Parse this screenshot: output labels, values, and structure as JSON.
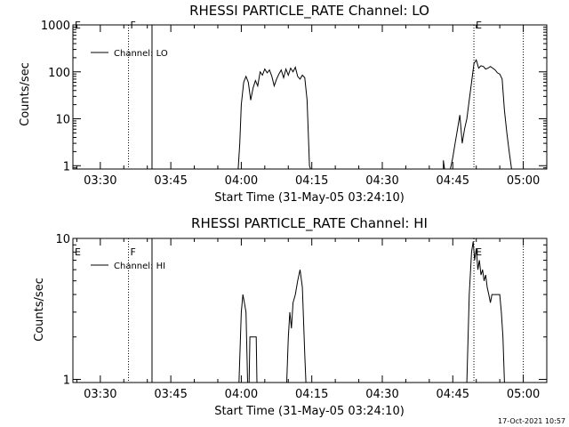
{
  "footer": {
    "timestamp": "17-Oct-2021 10:57"
  },
  "chart_data": [
    {
      "type": "line",
      "title": "RHESSI PARTICLE_RATE Channel: LO",
      "xlabel": "Start Time (31-May-05 03:24:10)",
      "ylabel": "Counts/sec",
      "yscale": "log",
      "xlim": [
        "03:24:10",
        "05:05:00"
      ],
      "ylim": [
        0.85,
        1000
      ],
      "x_ticks": [
        "03:30",
        "03:45",
        "04:00",
        "04:15",
        "04:30",
        "04:45",
        "05:00"
      ],
      "y_ticks": [
        "1",
        "10",
        "100",
        "1000"
      ],
      "legend": {
        "label": "Channel: LO",
        "position": "top-left"
      },
      "markers": [
        {
          "label": "E",
          "time": "03:24:10",
          "style": "solid"
        },
        {
          "label": "F",
          "time": "03:36:00",
          "style": "dotted"
        },
        {
          "label": "",
          "time": "03:41:00",
          "style": "solid"
        },
        {
          "label": "E",
          "time": "04:49:30",
          "style": "dotted"
        },
        {
          "label": "",
          "time": "05:00:00",
          "style": "dotted"
        }
      ],
      "series": [
        {
          "name": "Channel: LO",
          "segments": [
            [
              [
                "03:24:10",
                0.85
              ],
              [
                "03:59:20",
                0.85
              ],
              [
                "03:59:40",
                3
              ],
              [
                "04:00:00",
                20
              ],
              [
                "04:00:30",
                60
              ],
              [
                "04:01:00",
                80
              ],
              [
                "04:01:30",
                60
              ],
              [
                "04:02:00",
                25
              ],
              [
                "04:02:30",
                45
              ],
              [
                "04:03:00",
                65
              ],
              [
                "04:03:30",
                50
              ],
              [
                "04:04:00",
                100
              ],
              [
                "04:04:30",
                85
              ],
              [
                "04:05:00",
                115
              ],
              [
                "04:05:30",
                95
              ],
              [
                "04:06:00",
                110
              ],
              [
                "04:06:30",
                80
              ],
              [
                "04:07:00",
                50
              ],
              [
                "04:07:30",
                70
              ],
              [
                "04:08:00",
                90
              ],
              [
                "04:08:30",
                110
              ],
              [
                "04:09:00",
                75
              ],
              [
                "04:09:30",
                115
              ],
              [
                "04:10:00",
                85
              ],
              [
                "04:10:30",
                120
              ],
              [
                "04:11:00",
                100
              ],
              [
                "04:11:30",
                125
              ],
              [
                "04:12:00",
                80
              ],
              [
                "04:12:30",
                70
              ],
              [
                "04:13:00",
                85
              ],
              [
                "04:13:30",
                75
              ],
              [
                "04:14:00",
                25
              ],
              [
                "04:14:30",
                1
              ],
              [
                "04:14:45",
                0.85
              ],
              [
                "04:43:00",
                0.85
              ]
            ],
            [
              [
                "04:43:00",
                0.85
              ],
              [
                "04:43:00",
                1.3
              ],
              [
                "04:43:15",
                0.85
              ]
            ],
            [
              [
                "04:44:30",
                0.85
              ],
              [
                "04:45:00",
                1.5
              ],
              [
                "04:45:30",
                3
              ],
              [
                "04:46:00",
                6
              ],
              [
                "04:46:30",
                12
              ],
              [
                "04:47:00",
                3
              ],
              [
                "04:47:30",
                6
              ],
              [
                "04:48:00",
                10
              ],
              [
                "04:48:30",
                25
              ],
              [
                "04:49:00",
                60
              ],
              [
                "04:49:30",
                150
              ],
              [
                "04:50:00",
                180
              ],
              [
                "04:50:30",
                120
              ],
              [
                "04:51:00",
                135
              ],
              [
                "04:51:30",
                130
              ],
              [
                "04:52:00",
                115
              ],
              [
                "04:52:30",
                120
              ],
              [
                "04:53:00",
                130
              ],
              [
                "04:53:30",
                120
              ],
              [
                "04:54:00",
                110
              ],
              [
                "04:54:30",
                95
              ],
              [
                "04:55:00",
                90
              ],
              [
                "04:55:30",
                70
              ],
              [
                "04:56:00",
                15
              ],
              [
                "04:56:30",
                5
              ],
              [
                "04:57:00",
                2
              ],
              [
                "04:57:30",
                0.85
              ]
            ]
          ]
        }
      ]
    },
    {
      "type": "line",
      "title": "RHESSI PARTICLE_RATE Channel: HI",
      "xlabel": "Start Time (31-May-05 03:24:10)",
      "ylabel": "Counts/sec",
      "yscale": "log",
      "xlim": [
        "03:24:10",
        "05:05:00"
      ],
      "ylim": [
        0.95,
        10
      ],
      "x_ticks": [
        "03:30",
        "03:45",
        "04:00",
        "04:15",
        "04:30",
        "04:45",
        "05:00"
      ],
      "y_ticks": [
        "1",
        "10"
      ],
      "legend": {
        "label": "Channel: HI",
        "position": "top-left"
      },
      "markers": [
        {
          "label": "E",
          "time": "03:24:10",
          "style": "solid"
        },
        {
          "label": "F",
          "time": "03:36:00",
          "style": "dotted"
        },
        {
          "label": "",
          "time": "03:41:00",
          "style": "solid"
        },
        {
          "label": "E",
          "time": "04:49:30",
          "style": "dotted"
        },
        {
          "label": "",
          "time": "05:00:00",
          "style": "dotted"
        }
      ],
      "series": [
        {
          "name": "Channel: HI",
          "segments": [
            [
              [
                "03:59:30",
                0.95
              ],
              [
                "04:00:00",
                3
              ],
              [
                "04:00:20",
                4
              ],
              [
                "04:00:40",
                3.5
              ],
              [
                "04:01:00",
                3
              ],
              [
                "04:01:20",
                0.95
              ]
            ],
            [
              [
                "04:01:40",
                0.95
              ],
              [
                "04:01:50",
                2
              ],
              [
                "04:03:10",
                2
              ],
              [
                "04:03:20",
                0.95
              ]
            ],
            [
              [
                "04:09:40",
                0.95
              ],
              [
                "04:10:00",
                2
              ],
              [
                "04:10:20",
                3
              ],
              [
                "04:10:40",
                2.3
              ],
              [
                "04:11:00",
                3.5
              ],
              [
                "04:11:30",
                4
              ],
              [
                "04:12:00",
                5
              ],
              [
                "04:12:30",
                6
              ],
              [
                "04:13:00",
                4.5
              ],
              [
                "04:13:30",
                1.5
              ],
              [
                "04:13:45",
                0.95
              ]
            ],
            [
              [
                "04:48:00",
                0.95
              ],
              [
                "04:48:30",
                4
              ],
              [
                "04:49:00",
                8
              ],
              [
                "04:49:20",
                9.5
              ],
              [
                "04:49:40",
                7
              ],
              [
                "04:50:00",
                8.5
              ],
              [
                "04:50:20",
                6
              ],
              [
                "04:50:40",
                7
              ],
              [
                "04:51:00",
                5.5
              ],
              [
                "04:51:20",
                6
              ],
              [
                "04:51:40",
                5
              ],
              [
                "04:52:00",
                5.5
              ],
              [
                "04:52:20",
                4.5
              ],
              [
                "04:52:40",
                4
              ],
              [
                "04:53:00",
                3.5
              ],
              [
                "04:53:20",
                4
              ],
              [
                "04:55:00",
                4
              ],
              [
                "04:55:20",
                3
              ],
              [
                "04:55:40",
                2
              ],
              [
                "04:56:00",
                0.95
              ]
            ]
          ]
        }
      ]
    }
  ]
}
